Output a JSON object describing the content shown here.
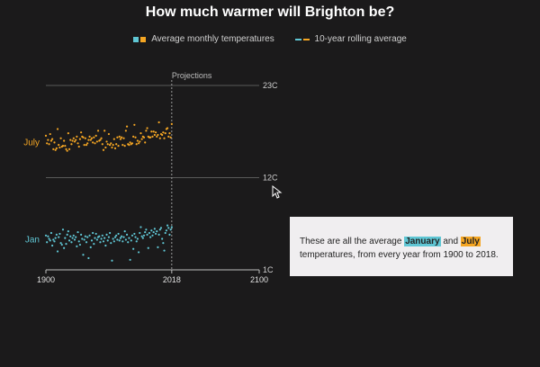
{
  "title": "How much warmer will Brighton be?",
  "legend": {
    "monthly_label": "Average monthly temperatures",
    "rolling_label": "10-year rolling average"
  },
  "colors": {
    "background": "#1b1a1b",
    "january": "#5fc6d4",
    "july": "#f5a623",
    "grid": "#5a5a5a",
    "annotation_bg": "#f0eef0"
  },
  "annotation": {
    "before": "These are all the average ",
    "jan": "January",
    "mid": " and ",
    "jul": "July",
    "after": " temperatures, from every year from 1900 to 2018."
  },
  "chart_data": {
    "type": "scatter",
    "title": "How much warmer will Brighton be?",
    "projection_label": "Projections",
    "xlim": [
      1900,
      2100
    ],
    "ylim": [
      1,
      23
    ],
    "x_ticks": [
      1900,
      2018,
      2100
    ],
    "y_ticks": [
      {
        "value": 23,
        "label": "23C"
      },
      {
        "value": 12,
        "label": "12C"
      },
      {
        "value": 1,
        "label": "1C"
      }
    ],
    "projection_start": 2018,
    "grid": true,
    "series": [
      {
        "name": "July",
        "color": "#f5a623",
        "x": [
          1900,
          1901,
          1902,
          1903,
          1904,
          1905,
          1906,
          1907,
          1908,
          1909,
          1910,
          1911,
          1912,
          1913,
          1914,
          1915,
          1916,
          1917,
          1918,
          1919,
          1920,
          1921,
          1922,
          1923,
          1924,
          1925,
          1926,
          1927,
          1928,
          1929,
          1930,
          1931,
          1932,
          1933,
          1934,
          1935,
          1936,
          1937,
          1938,
          1939,
          1940,
          1941,
          1942,
          1943,
          1944,
          1945,
          1946,
          1947,
          1948,
          1949,
          1950,
          1951,
          1952,
          1953,
          1954,
          1955,
          1956,
          1957,
          1958,
          1959,
          1960,
          1961,
          1962,
          1963,
          1964,
          1965,
          1966,
          1967,
          1968,
          1969,
          1970,
          1971,
          1972,
          1973,
          1974,
          1975,
          1976,
          1977,
          1978,
          1979,
          1980,
          1981,
          1982,
          1983,
          1984,
          1985,
          1986,
          1987,
          1988,
          1989,
          1990,
          1991,
          1992,
          1993,
          1994,
          1995,
          1996,
          1997,
          1998,
          1999,
          2000,
          2001,
          2002,
          2003,
          2004,
          2005,
          2006,
          2007,
          2008,
          2009,
          2010,
          2011,
          2012,
          2013,
          2014,
          2015,
          2016,
          2017,
          2018
        ],
        "values": [
          17.0,
          16.1,
          16.5,
          16.0,
          17.2,
          16.4,
          16.6,
          15.4,
          16.2,
          15.3,
          15.5,
          17.8,
          15.9,
          15.6,
          16.7,
          15.7,
          15.8,
          16.4,
          15.8,
          15.4,
          15.2,
          17.3,
          15.4,
          16.5,
          16.0,
          16.4,
          16.7,
          16.3,
          16.5,
          16.9,
          16.1,
          15.7,
          16.6,
          17.4,
          16.9,
          16.8,
          15.9,
          16.7,
          15.9,
          16.1,
          16.5,
          16.9,
          16.5,
          16.7,
          16.2,
          16.8,
          16.1,
          17.0,
          16.3,
          17.6,
          16.4,
          16.5,
          16.7,
          16.0,
          15.3,
          17.6,
          15.6,
          16.3,
          16.0,
          17.2,
          15.9,
          16.1,
          15.6,
          15.9,
          16.6,
          15.5,
          16.0,
          16.8,
          15.8,
          16.9,
          16.6,
          16.8,
          15.9,
          16.7,
          15.8,
          17.6,
          18.1,
          16.0,
          15.9,
          16.2,
          16.0,
          16.1,
          16.9,
          18.3,
          16.8,
          16.0,
          16.4,
          16.1,
          16.3,
          17.3,
          16.6,
          16.9,
          16.8,
          16.2,
          17.6,
          17.9,
          16.9,
          16.8,
          16.8,
          17.5,
          16.9,
          17.5,
          17.1,
          17.4,
          16.9,
          17.1,
          18.6,
          16.7,
          17.2,
          17.1,
          17.4,
          16.7,
          17.3,
          17.8,
          17.9,
          16.9,
          17.3,
          16.8,
          18.4
        ]
      },
      {
        "name": "Jan",
        "color": "#5fc6d4",
        "x": [
          1900,
          1901,
          1902,
          1903,
          1904,
          1905,
          1906,
          1907,
          1908,
          1909,
          1910,
          1911,
          1912,
          1913,
          1914,
          1915,
          1916,
          1917,
          1918,
          1919,
          1920,
          1921,
          1922,
          1923,
          1924,
          1925,
          1926,
          1927,
          1928,
          1929,
          1930,
          1931,
          1932,
          1933,
          1934,
          1935,
          1936,
          1937,
          1938,
          1939,
          1940,
          1941,
          1942,
          1943,
          1944,
          1945,
          1946,
          1947,
          1948,
          1949,
          1950,
          1951,
          1952,
          1953,
          1954,
          1955,
          1956,
          1957,
          1958,
          1959,
          1960,
          1961,
          1962,
          1963,
          1964,
          1965,
          1966,
          1967,
          1968,
          1969,
          1970,
          1971,
          1972,
          1973,
          1974,
          1975,
          1976,
          1977,
          1978,
          1979,
          1980,
          1981,
          1982,
          1983,
          1984,
          1985,
          1986,
          1987,
          1988,
          1989,
          1990,
          1991,
          1992,
          1993,
          1994,
          1995,
          1996,
          1997,
          1998,
          1999,
          2000,
          2001,
          2002,
          2003,
          2004,
          2005,
          2006,
          2007,
          2008,
          2009,
          2010,
          2011,
          2012,
          2013,
          2014,
          2015,
          2016,
          2017,
          2018
        ],
        "values": [
          5.1,
          4.3,
          5.0,
          4.7,
          4.5,
          5.4,
          3.9,
          4.6,
          4.4,
          4.8,
          5.2,
          3.2,
          4.9,
          5.3,
          4.2,
          4.0,
          5.8,
          3.6,
          4.8,
          4.1,
          5.2,
          5.6,
          4.5,
          5.0,
          4.3,
          4.8,
          5.1,
          4.6,
          4.9,
          3.8,
          5.5,
          4.4,
          4.0,
          5.2,
          4.7,
          2.8,
          4.6,
          5.0,
          4.3,
          4.9,
          2.4,
          5.1,
          3.7,
          4.5,
          5.4,
          4.1,
          4.8,
          5.3,
          4.6,
          4.9,
          5.0,
          4.3,
          4.7,
          5.1,
          4.4,
          4.8,
          3.9,
          5.2,
          4.5,
          4.9,
          5.4,
          4.2,
          2.1,
          4.7,
          4.4,
          4.9,
          5.1,
          4.6,
          5.3,
          4.5,
          4.8,
          5.0,
          4.4,
          4.9,
          5.6,
          4.6,
          5.2,
          4.3,
          4.8,
          2.2,
          4.5,
          5.1,
          3.5,
          5.3,
          4.9,
          4.4,
          4.7,
          3.1,
          5.4,
          6.1,
          5.0,
          4.8,
          5.1,
          5.5,
          5.8,
          5.2,
          3.6,
          5.4,
          4.9,
          5.7,
          5.1,
          5.5,
          5.9,
          5.3,
          5.6,
          3.7,
          5.2,
          5.8,
          6.0,
          4.7,
          4.2,
          3.3,
          5.4,
          5.7,
          6.3,
          6.0,
          5.2,
          5.8,
          6.1
        ]
      }
    ]
  }
}
